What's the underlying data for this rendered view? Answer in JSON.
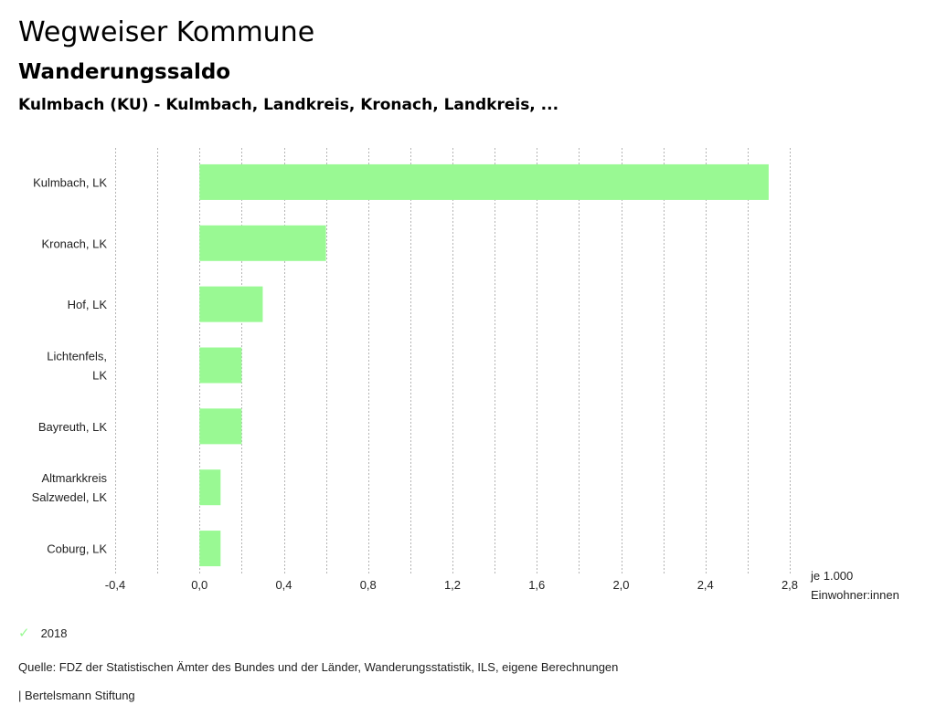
{
  "header": {
    "title": "Wegweiser Kommune",
    "subtitle": "Wanderungssaldo",
    "region": "Kulmbach (KU) - Kulmbach, Landkreis, Kronach, Landkreis, ..."
  },
  "chart_data": {
    "type": "bar",
    "orientation": "horizontal",
    "title": "Wanderungssaldo",
    "categories": [
      [
        "Kulmbach, LK"
      ],
      [
        "Kronach, LK"
      ],
      [
        "Hof, LK"
      ],
      [
        "Lichtenfels,",
        "LK"
      ],
      [
        "Bayreuth, LK"
      ],
      [
        "Altmarkkreis",
        "Salzwedel, LK"
      ],
      [
        "Coburg, LK"
      ]
    ],
    "series": [
      {
        "name": "2018",
        "color": "#99f993",
        "values": [
          2.7,
          0.6,
          0.3,
          0.2,
          0.2,
          0.1,
          0.1
        ]
      }
    ],
    "xlabel": [
      "je 1.000",
      "Einwohner:innen"
    ],
    "ylabel": "",
    "xlim": [
      -0.4,
      2.8
    ],
    "xticks": [
      -0.4,
      0.0,
      0.4,
      0.8,
      1.2,
      1.6,
      2.0,
      2.4,
      2.8
    ],
    "xtick_labels": [
      "-0,4",
      "0,0",
      "0,4",
      "0,8",
      "1,2",
      "1,6",
      "2,0",
      "2,4",
      "2,8"
    ],
    "grid_step": 0.2,
    "grid": true,
    "legend_position": "bottom-left"
  },
  "legend": {
    "items": [
      {
        "label": "2018",
        "icon": "check-icon",
        "color": "#99f993"
      }
    ]
  },
  "footer": {
    "source": "Quelle: FDZ der Statistischen Ämter des Bundes und der Länder, Wanderungsstatistik, ILS, eigene Berechnungen",
    "credit": "| Bertelsmann Stiftung"
  }
}
